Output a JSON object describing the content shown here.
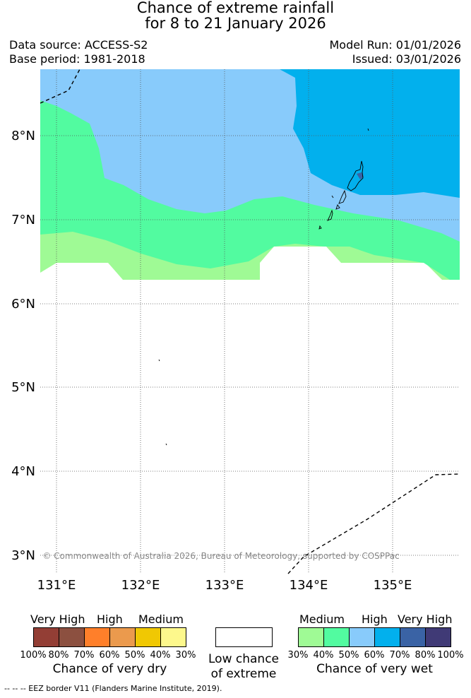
{
  "header": {
    "title_line1": "Chance of extreme rainfall",
    "title_line2": "for 8 to 21 January 2026",
    "data_source": "Data source: ACCESS-S2",
    "base_period": "Base period: 1981-2018",
    "model_run": "Model Run: 01/01/2026",
    "issued": "Issued: 03/01/2026"
  },
  "map": {
    "lat_labels": [
      "8°N",
      "7°N",
      "6°N",
      "5°N",
      "4°N",
      "3°N"
    ],
    "lon_labels": [
      "131°E",
      "132°E",
      "133°E",
      "134°E",
      "135°E"
    ],
    "copyright": "© Commonwealth of Australia 2026, Bureau of Meteorology, supported by COSPPac",
    "zone_colors": {
      "wet_medium_30_40": "#9ffa95",
      "wet_high_40_50": "#52fba0",
      "wet_high_50_60": "#88cbfb",
      "wet_veryhigh_60_70": "#02b0ed",
      "wet_veryhigh_70_80": "#3a63a5"
    }
  },
  "legend": {
    "dry": {
      "heads": [
        "Very High",
        "High",
        "Medium"
      ],
      "percents": [
        "100%",
        "80%",
        "70%",
        "60%",
        "50%",
        "40%",
        "30%"
      ],
      "colors": [
        "#933e35",
        "#8c5040",
        "#ff7f2a",
        "#eb9a4d",
        "#f0c803",
        "#fdf88c"
      ],
      "caption": "Chance of very dry"
    },
    "low": {
      "caption_line1": "Low chance",
      "caption_line2": "of extreme",
      "color": "#ffffff"
    },
    "wet": {
      "heads": [
        "Medium",
        "High",
        "Very High"
      ],
      "percents": [
        "30%",
        "40%",
        "50%",
        "60%",
        "70%",
        "80%",
        "100%"
      ],
      "colors": [
        "#9ffa95",
        "#52fba0",
        "#88cbfb",
        "#02b0ed",
        "#3a63a5",
        "#403a76"
      ],
      "caption": "Chance of very wet"
    }
  },
  "footnote": "--  --  -- EEZ border V11 (Flanders Marine Institute, 2019)."
}
